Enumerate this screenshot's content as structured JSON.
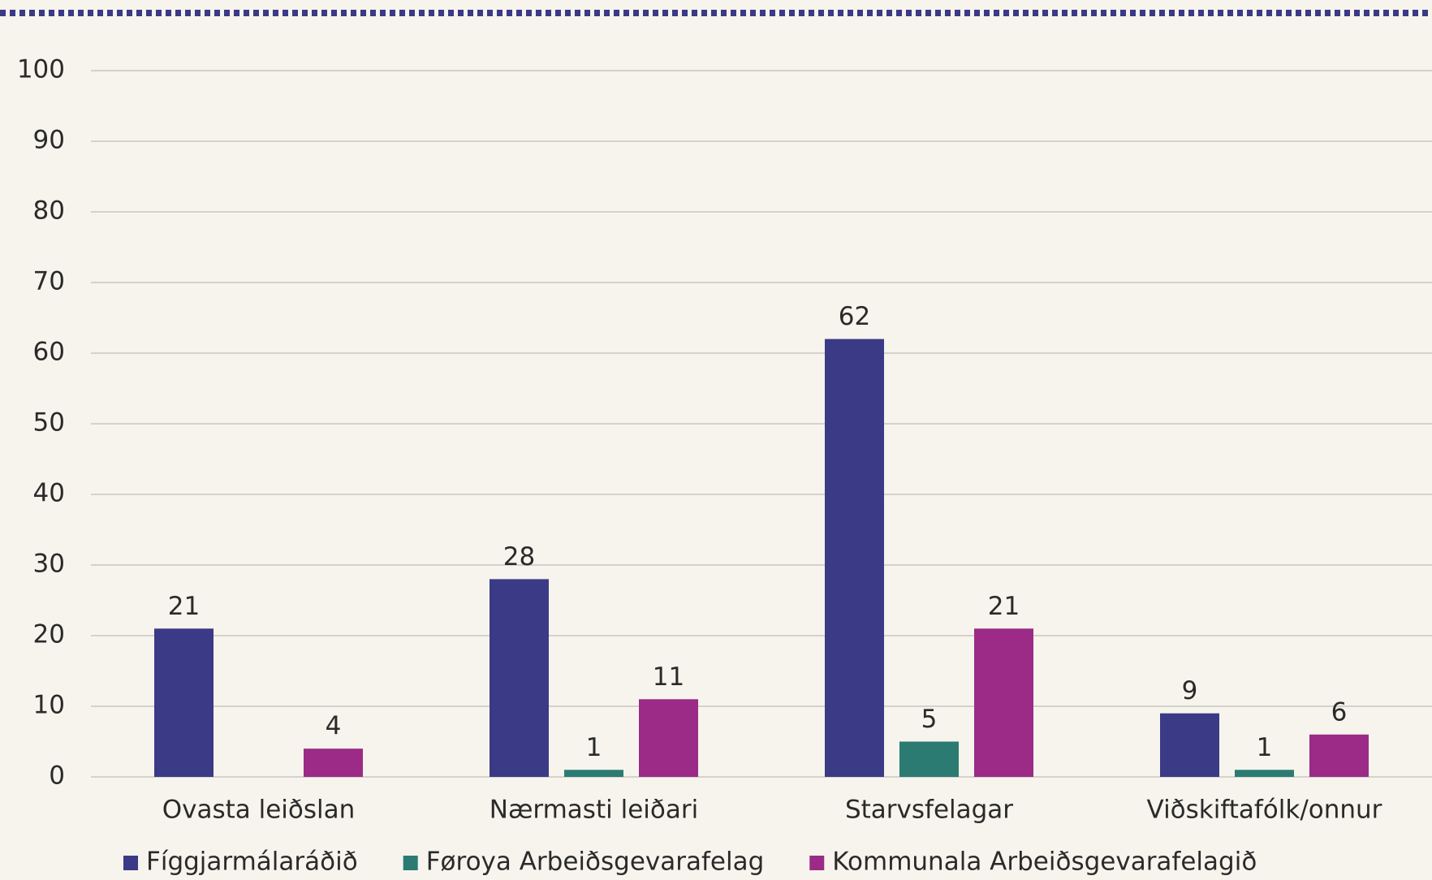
{
  "chart_data": {
    "type": "bar",
    "categories": [
      "Ovasta leiðslan",
      "Nærmasti leiðari",
      "Starvsfelagar",
      "Viðskiftafólk/onnur"
    ],
    "series": [
      {
        "name": "Fíggjarmálaráðið",
        "color": "#3b3a86",
        "values": [
          21,
          28,
          62,
          9
        ]
      },
      {
        "name": "Føroya Arbeiðsgevarafelag",
        "color": "#2b7b72",
        "values": [
          null,
          1,
          5,
          1
        ]
      },
      {
        "name": "Kommunala Arbeiðsgevarafelagið",
        "color": "#9b2b86",
        "values": [
          4,
          11,
          21,
          6
        ]
      }
    ],
    "ylim": [
      0,
      100
    ],
    "yticks": [
      0,
      10,
      20,
      30,
      40,
      50,
      60,
      70,
      80,
      90,
      100
    ],
    "grid": true,
    "legend": "bottom"
  }
}
